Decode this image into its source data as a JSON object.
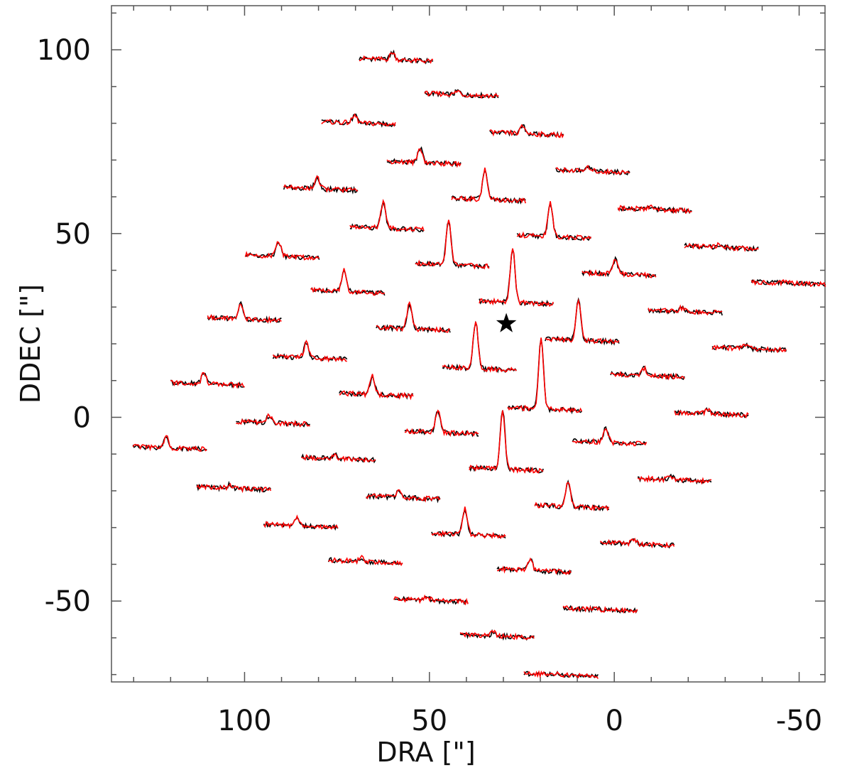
{
  "chart_data": {
    "type": "spectra-grid",
    "xlabel": "DRA  [\"]",
    "ylabel": "DDEC  [\"]",
    "xlim": [
      136,
      -57
    ],
    "ylim": [
      -72,
      112
    ],
    "xticks": [
      100,
      50,
      0,
      -50
    ],
    "yticks": [
      100,
      50,
      0,
      -50
    ],
    "xminorticks": [
      130,
      120,
      110,
      90,
      80,
      70,
      60,
      40,
      30,
      20,
      10,
      -10,
      -20,
      -30,
      -40
    ],
    "yminorticks": [
      110,
      90,
      80,
      70,
      60,
      40,
      30,
      20,
      10,
      -10,
      -20,
      -30,
      -40,
      -60,
      -70
    ],
    "trace_colors": [
      "#000000",
      "#ff0000"
    ],
    "spectra": {
      "x": [
        59.0,
        41.3,
        69.2,
        23.7,
        51.5,
        5.8,
        79.4,
        34.0,
        -11.0,
        61.5,
        16.3,
        -29.0,
        89.8,
        43.8,
        -1.3,
        -47.1,
        72.1,
        26.5,
        -19.2,
        100,
        54.4,
        8.7,
        -36.5,
        82.3,
        36.5,
        -9.0,
        110,
        64.4,
        18.8,
        -26.3,
        92.3,
        46.7,
        1.3,
        120.2,
        74.6,
        29.2,
        -16.3,
        102.9,
        57.1,
        11.5,
        84.8,
        39.4,
        -6.2,
        67.3,
        21.7,
        49.6,
        3.8,
        31.7,
        14.4
      ],
      "y": [
        97.3,
        87.8,
        80.1,
        77.2,
        69.3,
        67.0,
        62.2,
        59.3,
        56.6,
        51.5,
        49.2,
        46.3,
        43.8,
        41.5,
        39.0,
        36.5,
        34.2,
        31.3,
        28.8,
        26.8,
        24.1,
        21.0,
        18.7,
        16.2,
        13.3,
        11.4,
        9.1,
        6.2,
        2.3,
        1.0,
        -1.5,
        -4.1,
        -6.8,
        -8.3,
        -11.2,
        -14.1,
        -17.0,
        -19.3,
        -21.8,
        -24.3,
        -29.5,
        -31.9,
        -34.4,
        -39.2,
        -41.7,
        -49.8,
        -52.3,
        -59.5,
        -70.1
      ],
      "peak": [
        2,
        1,
        2,
        2,
        4,
        1,
        3,
        8,
        1,
        7,
        9,
        0.5,
        4,
        12,
        4,
        0.5,
        6,
        15,
        1,
        4,
        7,
        11,
        1,
        4,
        13,
        2,
        3,
        5,
        19,
        1,
        2,
        6,
        4,
        3,
        1,
        16,
        1,
        1,
        2,
        7,
        2,
        7,
        1,
        1,
        3,
        1,
        0.5,
        1,
        0.5
      ]
    },
    "star": {
      "x": 29.2,
      "y": 25.5
    }
  }
}
